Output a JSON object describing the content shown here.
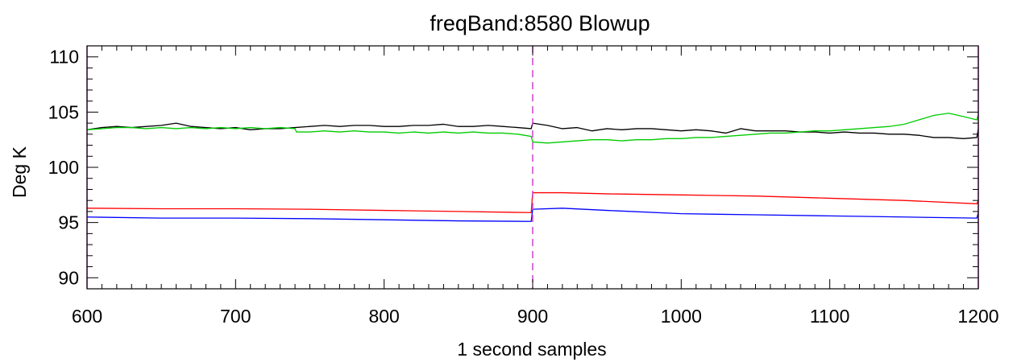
{
  "chart_data": {
    "type": "line",
    "title": "freqBand:8580 Blowup",
    "xlabel": "1 second samples",
    "ylabel": "Deg K",
    "xlim": [
      600,
      1200
    ],
    "ylim": [
      89,
      111
    ],
    "x_ticks": [
      600,
      700,
      800,
      900,
      1000,
      1100,
      1200
    ],
    "y_ticks": [
      90,
      95,
      100,
      105,
      110
    ],
    "x_minor_step": 10,
    "y_minor_step": 1,
    "grid": false,
    "marker_line": {
      "x": 900,
      "style": "dashed",
      "color": "#cc44cc"
    },
    "edge_marker_color": "#cc44cc",
    "series": [
      {
        "color": "#000000",
        "x": [
          600,
          610,
          620,
          630,
          640,
          650,
          660,
          670,
          680,
          690,
          700,
          710,
          720,
          730,
          740,
          750,
          760,
          770,
          780,
          790,
          800,
          810,
          820,
          830,
          840,
          850,
          860,
          870,
          880,
          890,
          899,
          900,
          910,
          920,
          930,
          940,
          950,
          960,
          970,
          980,
          990,
          1000,
          1010,
          1020,
          1030,
          1040,
          1050,
          1060,
          1070,
          1080,
          1090,
          1100,
          1110,
          1120,
          1130,
          1140,
          1150,
          1160,
          1170,
          1180,
          1190,
          1199,
          1200
        ],
        "y": [
          103.4,
          103.6,
          103.7,
          103.6,
          103.7,
          103.8,
          104.0,
          103.7,
          103.6,
          103.5,
          103.6,
          103.4,
          103.5,
          103.5,
          103.6,
          103.7,
          103.8,
          103.7,
          103.8,
          103.8,
          103.7,
          103.7,
          103.8,
          103.8,
          103.9,
          103.7,
          103.7,
          103.8,
          103.7,
          103.6,
          103.5,
          104.0,
          103.8,
          103.5,
          103.6,
          103.3,
          103.5,
          103.4,
          103.5,
          103.5,
          103.4,
          103.3,
          103.4,
          103.3,
          103.1,
          103.5,
          103.3,
          103.3,
          103.3,
          103.2,
          103.2,
          103.1,
          103.2,
          103.1,
          103.1,
          103.0,
          103.0,
          102.9,
          102.7,
          102.7,
          102.6,
          102.7,
          103.5
        ]
      },
      {
        "color": "#00cc00",
        "x": [
          600,
          610,
          620,
          630,
          640,
          650,
          660,
          670,
          680,
          690,
          700,
          710,
          720,
          730,
          740,
          741,
          750,
          760,
          770,
          780,
          790,
          800,
          810,
          820,
          830,
          840,
          850,
          860,
          870,
          880,
          890,
          899,
          900,
          910,
          920,
          930,
          940,
          950,
          960,
          970,
          980,
          990,
          1000,
          1010,
          1020,
          1030,
          1040,
          1050,
          1060,
          1070,
          1080,
          1090,
          1100,
          1110,
          1120,
          1130,
          1140,
          1150,
          1160,
          1170,
          1180,
          1190,
          1199,
          1200
        ],
        "y": [
          103.4,
          103.5,
          103.6,
          103.6,
          103.5,
          103.6,
          103.5,
          103.6,
          103.5,
          103.6,
          103.5,
          103.6,
          103.5,
          103.6,
          103.5,
          103.2,
          103.2,
          103.3,
          103.2,
          103.3,
          103.2,
          103.2,
          103.1,
          103.2,
          103.1,
          103.2,
          103.1,
          103.2,
          103.1,
          103.1,
          103.0,
          102.8,
          102.3,
          102.2,
          102.3,
          102.4,
          102.5,
          102.5,
          102.4,
          102.5,
          102.5,
          102.6,
          102.6,
          102.7,
          102.7,
          102.8,
          102.9,
          103.0,
          103.1,
          103.1,
          103.2,
          103.3,
          103.3,
          103.4,
          103.5,
          103.6,
          103.7,
          103.9,
          104.3,
          104.7,
          104.9,
          104.6,
          104.3,
          104.8
        ]
      },
      {
        "color": "#ff0000",
        "x": [
          600,
          650,
          700,
          750,
          800,
          850,
          899,
          900,
          920,
          950,
          1000,
          1050,
          1100,
          1150,
          1199,
          1200
        ],
        "y": [
          96.3,
          96.25,
          96.25,
          96.2,
          96.1,
          96.0,
          95.9,
          97.7,
          97.7,
          97.6,
          97.5,
          97.4,
          97.2,
          97.0,
          96.7,
          97.0
        ]
      },
      {
        "color": "#0000ff",
        "x": [
          600,
          650,
          700,
          750,
          800,
          850,
          899,
          900,
          920,
          950,
          1000,
          1050,
          1100,
          1150,
          1199,
          1200
        ],
        "y": [
          95.5,
          95.4,
          95.4,
          95.35,
          95.25,
          95.15,
          95.1,
          96.2,
          96.3,
          96.1,
          95.8,
          95.7,
          95.6,
          95.5,
          95.4,
          95.9
        ]
      }
    ]
  }
}
